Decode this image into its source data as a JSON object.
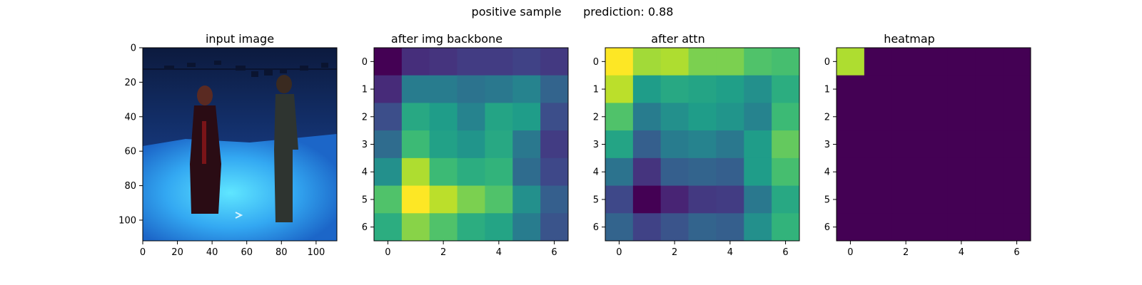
{
  "suptitle": "positive sample      prediction: 0.88",
  "chart_data": [
    {
      "type": "image",
      "title": "input image",
      "description": "Photograph: two people standing in a blue-lit studio room",
      "xlim": [
        0,
        112
      ],
      "ylim": [
        112,
        0
      ],
      "xticks": [
        "0",
        "20",
        "40",
        "60",
        "80",
        "100"
      ],
      "yticks": [
        "0",
        "20",
        "40",
        "60",
        "80",
        "100"
      ],
      "xtick_values": [
        0,
        20,
        40,
        60,
        80,
        100
      ],
      "ytick_values": [
        0,
        20,
        40,
        60,
        80,
        100
      ]
    },
    {
      "type": "heatmap",
      "title": "after img backbone",
      "colormap": "viridis",
      "xticks": [
        "0",
        "2",
        "4",
        "6"
      ],
      "yticks": [
        "0",
        "1",
        "2",
        "3",
        "4",
        "5",
        "6"
      ],
      "xtick_values": [
        0,
        2,
        4,
        6
      ],
      "ytick_values": [
        0,
        1,
        2,
        3,
        4,
        5,
        6
      ],
      "values": [
        [
          0.0,
          0.13,
          0.15,
          0.18,
          0.18,
          0.2,
          0.17
        ],
        [
          0.12,
          0.42,
          0.42,
          0.38,
          0.4,
          0.45,
          0.32
        ],
        [
          0.24,
          0.6,
          0.55,
          0.45,
          0.58,
          0.55,
          0.24
        ],
        [
          0.35,
          0.68,
          0.57,
          0.52,
          0.6,
          0.4,
          0.18
        ],
        [
          0.5,
          0.88,
          0.68,
          0.62,
          0.65,
          0.35,
          0.22
        ],
        [
          0.72,
          1.0,
          0.9,
          0.8,
          0.72,
          0.5,
          0.3
        ],
        [
          0.62,
          0.82,
          0.72,
          0.62,
          0.58,
          0.42,
          0.26
        ]
      ]
    },
    {
      "type": "heatmap",
      "title": "after attn",
      "colormap": "viridis",
      "xticks": [
        "0",
        "2",
        "4",
        "6"
      ],
      "yticks": [
        "0",
        "1",
        "2",
        "3",
        "4",
        "5",
        "6"
      ],
      "xtick_values": [
        0,
        2,
        4,
        6
      ],
      "ytick_values": [
        0,
        1,
        2,
        3,
        4,
        5,
        6
      ],
      "values": [
        [
          1.0,
          0.86,
          0.88,
          0.8,
          0.8,
          0.72,
          0.7
        ],
        [
          0.9,
          0.55,
          0.6,
          0.58,
          0.56,
          0.5,
          0.62
        ],
        [
          0.72,
          0.42,
          0.5,
          0.55,
          0.52,
          0.45,
          0.68
        ],
        [
          0.58,
          0.3,
          0.42,
          0.45,
          0.4,
          0.55,
          0.76
        ],
        [
          0.38,
          0.15,
          0.3,
          0.32,
          0.3,
          0.55,
          0.7
        ],
        [
          0.22,
          0.0,
          0.1,
          0.17,
          0.18,
          0.4,
          0.6
        ],
        [
          0.32,
          0.2,
          0.26,
          0.32,
          0.3,
          0.5,
          0.65
        ]
      ]
    },
    {
      "type": "heatmap",
      "title": "heatmap",
      "colormap": "viridis",
      "xticks": [
        "0",
        "2",
        "4",
        "6"
      ],
      "yticks": [
        "0",
        "1",
        "2",
        "3",
        "4",
        "5",
        "6"
      ],
      "xtick_values": [
        0,
        2,
        4,
        6
      ],
      "ytick_values": [
        0,
        1,
        2,
        3,
        4,
        5,
        6
      ],
      "values": [
        [
          0.88,
          0,
          0,
          0,
          0,
          0,
          0
        ],
        [
          0,
          0,
          0,
          0,
          0,
          0,
          0
        ],
        [
          0,
          0,
          0,
          0,
          0,
          0,
          0
        ],
        [
          0,
          0,
          0,
          0,
          0,
          0,
          0
        ],
        [
          0,
          0,
          0,
          0,
          0,
          0,
          0
        ],
        [
          0,
          0,
          0,
          0,
          0,
          0,
          0
        ],
        [
          0,
          0,
          0,
          0,
          0,
          0,
          0
        ]
      ]
    }
  ]
}
